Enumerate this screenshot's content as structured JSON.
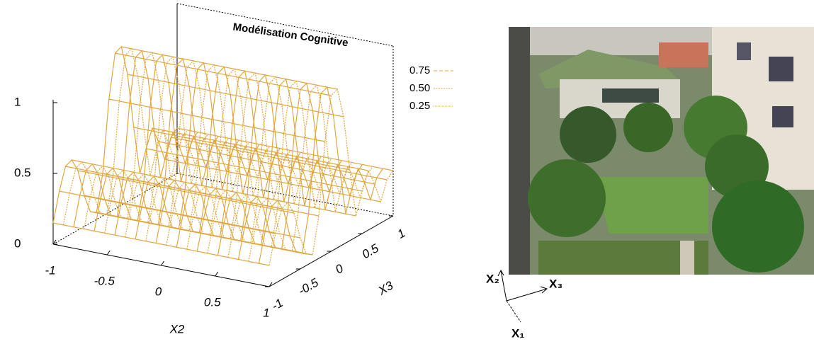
{
  "chart_data": {
    "type": "surface",
    "title": "Modélisation Cognitive",
    "xlabel": "X2",
    "ylabel": "X3",
    "xlim": [
      -1,
      1
    ],
    "xticks": [
      -1,
      -0.5,
      0,
      0.5,
      1
    ],
    "ylim": [
      -1,
      1
    ],
    "yticks": [
      -1,
      -0.5,
      0,
      0.5,
      1
    ],
    "zlim": [
      0,
      1.2
    ],
    "zticks": [
      0,
      0.5,
      1
    ],
    "y": [
      -1,
      -0.9,
      -0.8,
      -0.7,
      -0.6,
      -0.5,
      -0.4,
      -0.3,
      -0.2,
      -0.1,
      0,
      0.1,
      0.2,
      0.3,
      0.4,
      0.5,
      0.6,
      0.7,
      0.8,
      0.9,
      1
    ],
    "values": [
      0.15,
      0.35,
      0.5,
      0.52,
      0.42,
      0.22,
      0.08,
      0.05,
      0.3,
      0.8,
      1.1,
      1.12,
      0.9,
      0.5,
      0.15,
      0.3,
      0.42,
      0.3,
      0.15,
      0.28,
      0.32
    ],
    "color": "#e0a640",
    "contour_levels": [
      0.75,
      {
        "value": 0.5,
        "label": "0.50"
      },
      0.25
    ]
  },
  "photo_axes": {
    "x2": "X₂",
    "x3": "X₃",
    "x1": "X₁"
  }
}
